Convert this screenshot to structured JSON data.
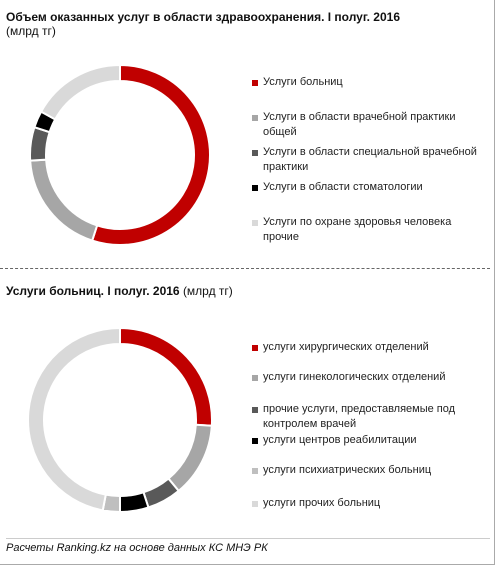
{
  "chart_data": [
    {
      "type": "donut",
      "title": "Объем оказанных  услуг в области здравоохранения.  I полуг. 2016",
      "subtitle": "(млрд тг)",
      "categories": [
        "Услуги больниц",
        "Услуги в области врачебной практики общей",
        "Услуги в области специальной врачебной практики",
        "Услуги в области стоматологии",
        "Услуги по охране здоровья человека прочие"
      ],
      "values": [
        55,
        19,
        6,
        3,
        17
      ],
      "colors": [
        "#c00000",
        "#a6a6a6",
        "#595959",
        "#000000",
        "#d9d9d9"
      ]
    },
    {
      "type": "donut",
      "title": "Услуги больниц.  I полуг. 2016",
      "subtitle": "(млрд тг)",
      "categories": [
        "услуги хирургических отделений",
        "услуги гинекологических отделений",
        "прочие услуги, предоставляемые под контролем врачей",
        "услуги центров реабилитации",
        "услуги психиатрических больниц",
        "услуги прочих больниц"
      ],
      "values": [
        26,
        13,
        6,
        5,
        3,
        47
      ],
      "colors": [
        "#c00000",
        "#a6a6a6",
        "#595959",
        "#000000",
        "#bfbfbf",
        "#d9d9d9"
      ]
    }
  ],
  "source": "Расчеты Ranking.kz на основе данных КС МНЭ РК"
}
